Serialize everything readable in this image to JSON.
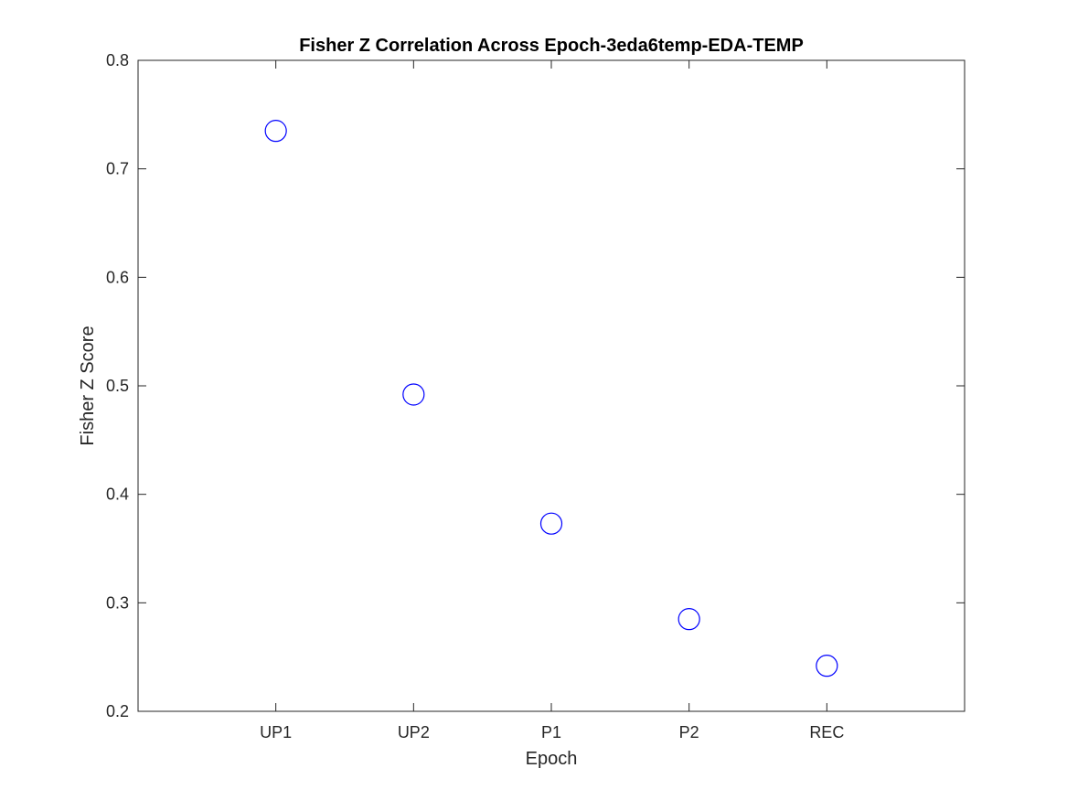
{
  "chart_data": {
    "type": "scatter",
    "title": "Fisher Z Correlation Across Epoch-3eda6temp-EDA-TEMP",
    "xlabel": "Epoch",
    "ylabel": "Fisher Z Score",
    "categories": [
      "UP1",
      "UP2",
      "P1",
      "P2",
      "REC"
    ],
    "xlim": [
      0,
      6
    ],
    "ylim": [
      0.2,
      0.8
    ],
    "yticks": [
      0.2,
      0.3,
      0.4,
      0.5,
      0.6,
      0.7,
      0.8
    ],
    "ytick_labels": [
      "0.2",
      "0.3",
      "0.4",
      "0.5",
      "0.6",
      "0.7",
      "0.8"
    ],
    "series": [
      {
        "marker": "circle",
        "color": "#0000ff",
        "values": [
          0.735,
          0.492,
          0.373,
          0.285,
          0.242
        ]
      }
    ],
    "grid": false,
    "legend": "none"
  }
}
